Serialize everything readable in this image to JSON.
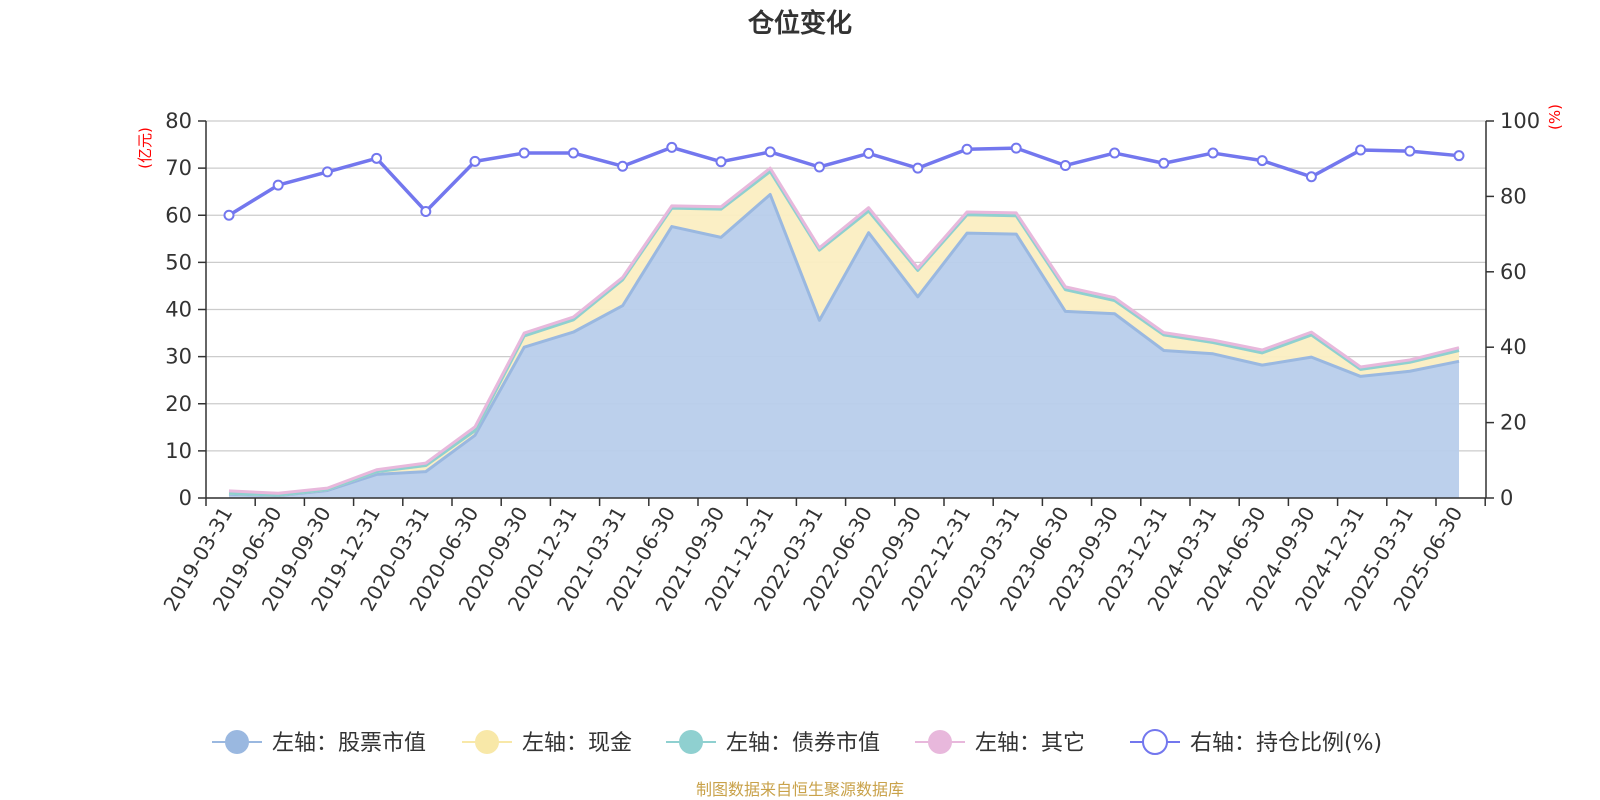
{
  "source_note": "制图数据来自恒生聚源数据库",
  "chart_data": {
    "type": "area",
    "title": "仓位变化",
    "y_left_unit": "(亿元)",
    "y_right_unit": "(%)",
    "ylim_left": [
      0,
      80
    ],
    "yticks_left": [
      "0",
      "10",
      "20",
      "30",
      "40",
      "50",
      "60",
      "70",
      "80"
    ],
    "ylim_right": [
      0,
      100
    ],
    "yticks_right": [
      "0",
      "20",
      "40",
      "60",
      "80",
      "100"
    ],
    "grid": true,
    "legend_position": "bottom",
    "x": [
      "2019-03-31",
      "2019-06-30",
      "2019-09-30",
      "2019-12-31",
      "2020-03-31",
      "2020-06-30",
      "2020-09-30",
      "2020-12-31",
      "2021-03-31",
      "2021-06-30",
      "2021-09-30",
      "2021-12-31",
      "2022-03-31",
      "2022-06-30",
      "2022-09-30",
      "2022-12-31",
      "2023-03-31",
      "2023-06-30",
      "2023-09-30",
      "2023-12-31",
      "2024-03-31",
      "2024-06-30",
      "2024-09-30",
      "2024-12-31",
      "2025-03-31",
      "2025-06-30"
    ],
    "series": [
      {
        "name": "左轴：股票市值",
        "axis": "left",
        "color": "#9ab8e0",
        "fill": "#b8cdeb",
        "values": [
          0.8,
          0.5,
          1.6,
          5.0,
          5.6,
          13.3,
          32.0,
          35.2,
          40.8,
          57.6,
          55.3,
          64.4,
          37.7,
          56.3,
          42.7,
          56.2,
          56.0,
          39.6,
          39.1,
          31.3,
          30.6,
          28.2,
          29.9,
          25.8,
          26.9,
          29.0
        ]
      },
      {
        "name": "左轴：现金",
        "axis": "left",
        "color": "#f8e8a8",
        "fill": "#fbeec2",
        "values": [
          0.2,
          0.1,
          0.2,
          0.6,
          1.3,
          1.0,
          2.4,
          2.6,
          5.5,
          3.9,
          6.0,
          4.9,
          14.9,
          4.6,
          5.6,
          3.9,
          3.9,
          4.6,
          2.8,
          3.3,
          2.4,
          2.6,
          4.7,
          1.5,
          1.9,
          2.3
        ]
      },
      {
        "name": "左轴：债券市值",
        "axis": "left",
        "color": "#8fd0d0",
        "fill": "#b0dede",
        "values": [
          0,
          0,
          0,
          0,
          0,
          0,
          0,
          0,
          0,
          0,
          0,
          0,
          0,
          0,
          0,
          0,
          0,
          0,
          0,
          0,
          0,
          0,
          0,
          0,
          0,
          0
        ]
      },
      {
        "name": "左轴：其它",
        "axis": "left",
        "color": "#e8b8dc",
        "fill": "#f0cce6",
        "values": [
          0.5,
          0.4,
          0.3,
          0.4,
          0.5,
          0.8,
          0.6,
          0.6,
          0.5,
          0.5,
          0.5,
          0.7,
          0.5,
          0.7,
          0.5,
          0.6,
          0.6,
          0.6,
          0.6,
          0.5,
          0.5,
          0.6,
          0.6,
          0.5,
          0.5,
          0.6
        ]
      },
      {
        "name": "右轴：持仓比例(%)",
        "axis": "right",
        "color": "#7377ee",
        "values": [
          75.0,
          83.0,
          86.5,
          90.1,
          76.0,
          89.3,
          91.5,
          91.5,
          88.0,
          93.0,
          89.2,
          91.8,
          87.8,
          91.4,
          87.5,
          92.5,
          92.8,
          88.2,
          91.5,
          88.8,
          91.5,
          89.5,
          85.2,
          92.3,
          92.0,
          90.8
        ]
      }
    ]
  }
}
